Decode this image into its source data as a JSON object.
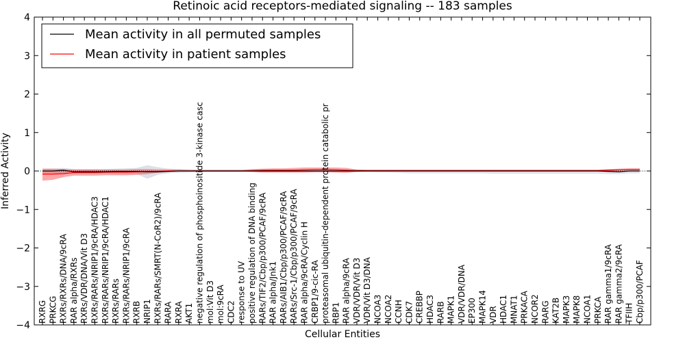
{
  "chart_data": {
    "type": "line",
    "title": "Retinoic acid receptors-mediated signaling -- 183 samples",
    "xlabel": "Cellular Entities",
    "ylabel": "Inferred Activity",
    "ylim": [
      -4,
      4
    ],
    "yticks": [
      -4,
      -3,
      -2,
      -1,
      0,
      1,
      2,
      3,
      4
    ],
    "ytick_labels": [
      "−4",
      "−3",
      "−2",
      "−1",
      "0",
      "1",
      "2",
      "3",
      "4"
    ],
    "legend": {
      "placement": "top-left",
      "entries": [
        {
          "label": "Mean activity in all permuted samples",
          "color": "#000000"
        },
        {
          "label": "Mean activity in patient samples",
          "color": "#ff0000"
        }
      ]
    },
    "categories": [
      "RXRG",
      "PRKCG",
      "RXRs/RXRs/DNA/9cRA",
      "RAR alpha/RXRs",
      "RXRs/VDR/DNA/Vit D3",
      "RXRs/RARs/NRIP1/9cRA/HDAC3",
      "RXRs/RARs/NRIP1/9cRA/HDAC1",
      "RXRs/RARs",
      "RXRs/RARs/NRIP1/9cRA",
      "RXRB",
      "NRIP1",
      "RXRs/RARs/SMRT(N-CoR2)/9cRA",
      "RARA",
      "RXRA",
      "AKT1",
      "negative regulation of phosphoinositide 3-kinase casc",
      "mol:Vit D3",
      "mol:9cRA",
      "CDC2",
      "response to UV",
      "positive regulation of DNA binding",
      "RARs/TIF2/Cbp/p300/PCAF/9cRA",
      "RAR alpha/Jnk1",
      "RARs/AIB1/Cbp/p300/PCAF/9cRA",
      "RARs/Src-1/Cbp/p300/PCAF/9cRA",
      "RAR alpha/9cRA/Cyclin H",
      "CRBP1/9-cic-RA",
      "proteasomal ubiquitin-dependent protein catabolic pr",
      "RBP1",
      "RAR alpha/9cRA",
      "VDR/VDR/Vit D3",
      "VDR/Vit D3/DNA",
      "NCOA3",
      "NCOA2",
      "CCNH",
      "CDK7",
      "CREBBP",
      "HDAC3",
      "RARB",
      "MAPK1",
      "VDR/VDR/DNA",
      "EP300",
      "MAPK14",
      "VDR",
      "HDAC1",
      "MNAT1",
      "PRKACA",
      "NCOR2",
      "RARG",
      "KAT2B",
      "MAPK3",
      "MAPK8",
      "NCOA1",
      "PRKCA",
      "RAR gamma1/9cRA",
      "RAR gamma2/9cRA",
      "TFIIH",
      "Cbp/p300/PCAF"
    ],
    "series": [
      {
        "name": "Mean activity in all permuted samples",
        "color": "#000000",
        "values": [
          0.0,
          0.0,
          0.02,
          -0.02,
          -0.02,
          -0.02,
          -0.02,
          -0.01,
          -0.01,
          -0.01,
          -0.02,
          -0.02,
          -0.01,
          0.0,
          0.0,
          0.0,
          0.0,
          0.0,
          0.0,
          0.0,
          0.0,
          0.0,
          0.0,
          0.0,
          0.0,
          0.0,
          0.0,
          0.0,
          0.0,
          0.0,
          0.0,
          0.0,
          0.0,
          0.0,
          0.0,
          0.0,
          0.0,
          0.0,
          0.0,
          0.0,
          0.0,
          0.0,
          0.0,
          0.0,
          0.0,
          0.0,
          0.0,
          0.0,
          0.0,
          0.0,
          0.0,
          0.0,
          0.0,
          0.0,
          -0.01,
          -0.02,
          0.0,
          0.0
        ],
        "band_lower": [
          -0.06,
          -0.06,
          -0.06,
          -0.07,
          -0.07,
          -0.07,
          -0.07,
          -0.07,
          -0.07,
          -0.08,
          -0.2,
          -0.1,
          -0.06,
          -0.05,
          -0.04,
          -0.03,
          -0.03,
          -0.03,
          -0.03,
          -0.03,
          -0.03,
          -0.03,
          -0.03,
          -0.03,
          -0.03,
          -0.03,
          -0.03,
          -0.03,
          -0.03,
          -0.03,
          -0.03,
          -0.03,
          -0.04,
          -0.04,
          -0.05,
          -0.06,
          -0.06,
          -0.06,
          -0.06,
          -0.06,
          -0.06,
          -0.06,
          -0.06,
          -0.07,
          -0.07,
          -0.07,
          -0.07,
          -0.07,
          -0.07,
          -0.07,
          -0.07,
          -0.07,
          -0.07,
          -0.07,
          -0.08,
          -0.08,
          -0.06,
          -0.06
        ],
        "band_upper": [
          0.06,
          0.06,
          0.08,
          0.05,
          0.05,
          0.05,
          0.05,
          0.06,
          0.07,
          0.08,
          0.15,
          0.1,
          0.06,
          0.05,
          0.04,
          0.03,
          0.03,
          0.03,
          0.03,
          0.03,
          0.03,
          0.03,
          0.03,
          0.03,
          0.03,
          0.03,
          0.03,
          0.03,
          0.03,
          0.03,
          0.03,
          0.03,
          0.03,
          0.03,
          0.03,
          0.03,
          0.03,
          0.03,
          0.03,
          0.03,
          0.03,
          0.03,
          0.03,
          0.03,
          0.03,
          0.03,
          0.03,
          0.03,
          0.03,
          0.03,
          0.03,
          0.03,
          0.03,
          0.03,
          0.03,
          0.03,
          0.04,
          0.04
        ]
      },
      {
        "name": "Mean activity in patient samples",
        "color": "#ff0000",
        "values": [
          -0.08,
          -0.08,
          -0.07,
          -0.04,
          -0.04,
          -0.04,
          -0.03,
          -0.03,
          -0.03,
          -0.02,
          -0.01,
          -0.01,
          0.0,
          0.0,
          0.0,
          0.0,
          0.0,
          0.0,
          0.0,
          0.0,
          0.01,
          0.02,
          0.02,
          0.02,
          0.02,
          0.03,
          0.04,
          0.04,
          0.03,
          0.02,
          0.01,
          0.01,
          0.01,
          0.01,
          0.01,
          0.01,
          0.01,
          0.01,
          0.01,
          0.01,
          0.01,
          0.01,
          0.01,
          0.01,
          0.01,
          0.01,
          0.01,
          0.01,
          0.01,
          0.01,
          0.01,
          0.01,
          0.01,
          0.01,
          0.02,
          0.03,
          0.04,
          0.04
        ],
        "band_lower": [
          -0.25,
          -0.23,
          -0.16,
          -0.12,
          -0.12,
          -0.12,
          -0.11,
          -0.11,
          -0.11,
          -0.1,
          -0.08,
          -0.05,
          -0.02,
          -0.01,
          -0.01,
          -0.01,
          -0.01,
          -0.01,
          -0.01,
          -0.01,
          -0.02,
          -0.04,
          -0.04,
          -0.04,
          -0.04,
          -0.04,
          -0.03,
          -0.03,
          -0.04,
          -0.05,
          -0.02,
          -0.01,
          -0.01,
          -0.01,
          -0.01,
          -0.01,
          -0.01,
          -0.01,
          -0.01,
          -0.01,
          -0.01,
          -0.01,
          -0.01,
          -0.01,
          -0.01,
          -0.01,
          -0.01,
          -0.01,
          -0.01,
          -0.01,
          -0.01,
          -0.01,
          -0.01,
          -0.01,
          0.0,
          0.01,
          0.02,
          0.02
        ],
        "band_upper": [
          0.06,
          0.06,
          0.05,
          0.04,
          0.04,
          0.04,
          0.04,
          0.04,
          0.04,
          0.05,
          0.05,
          0.04,
          0.04,
          0.04,
          0.03,
          0.03,
          0.03,
          0.03,
          0.03,
          0.03,
          0.05,
          0.06,
          0.07,
          0.07,
          0.08,
          0.09,
          0.09,
          0.09,
          0.09,
          0.08,
          0.04,
          0.03,
          0.03,
          0.03,
          0.03,
          0.03,
          0.03,
          0.03,
          0.03,
          0.03,
          0.03,
          0.03,
          0.03,
          0.03,
          0.03,
          0.03,
          0.03,
          0.03,
          0.03,
          0.03,
          0.03,
          0.03,
          0.03,
          0.03,
          0.05,
          0.06,
          0.07,
          0.07
        ]
      }
    ],
    "zero_line": {
      "style": "dotted",
      "value": 0
    }
  }
}
